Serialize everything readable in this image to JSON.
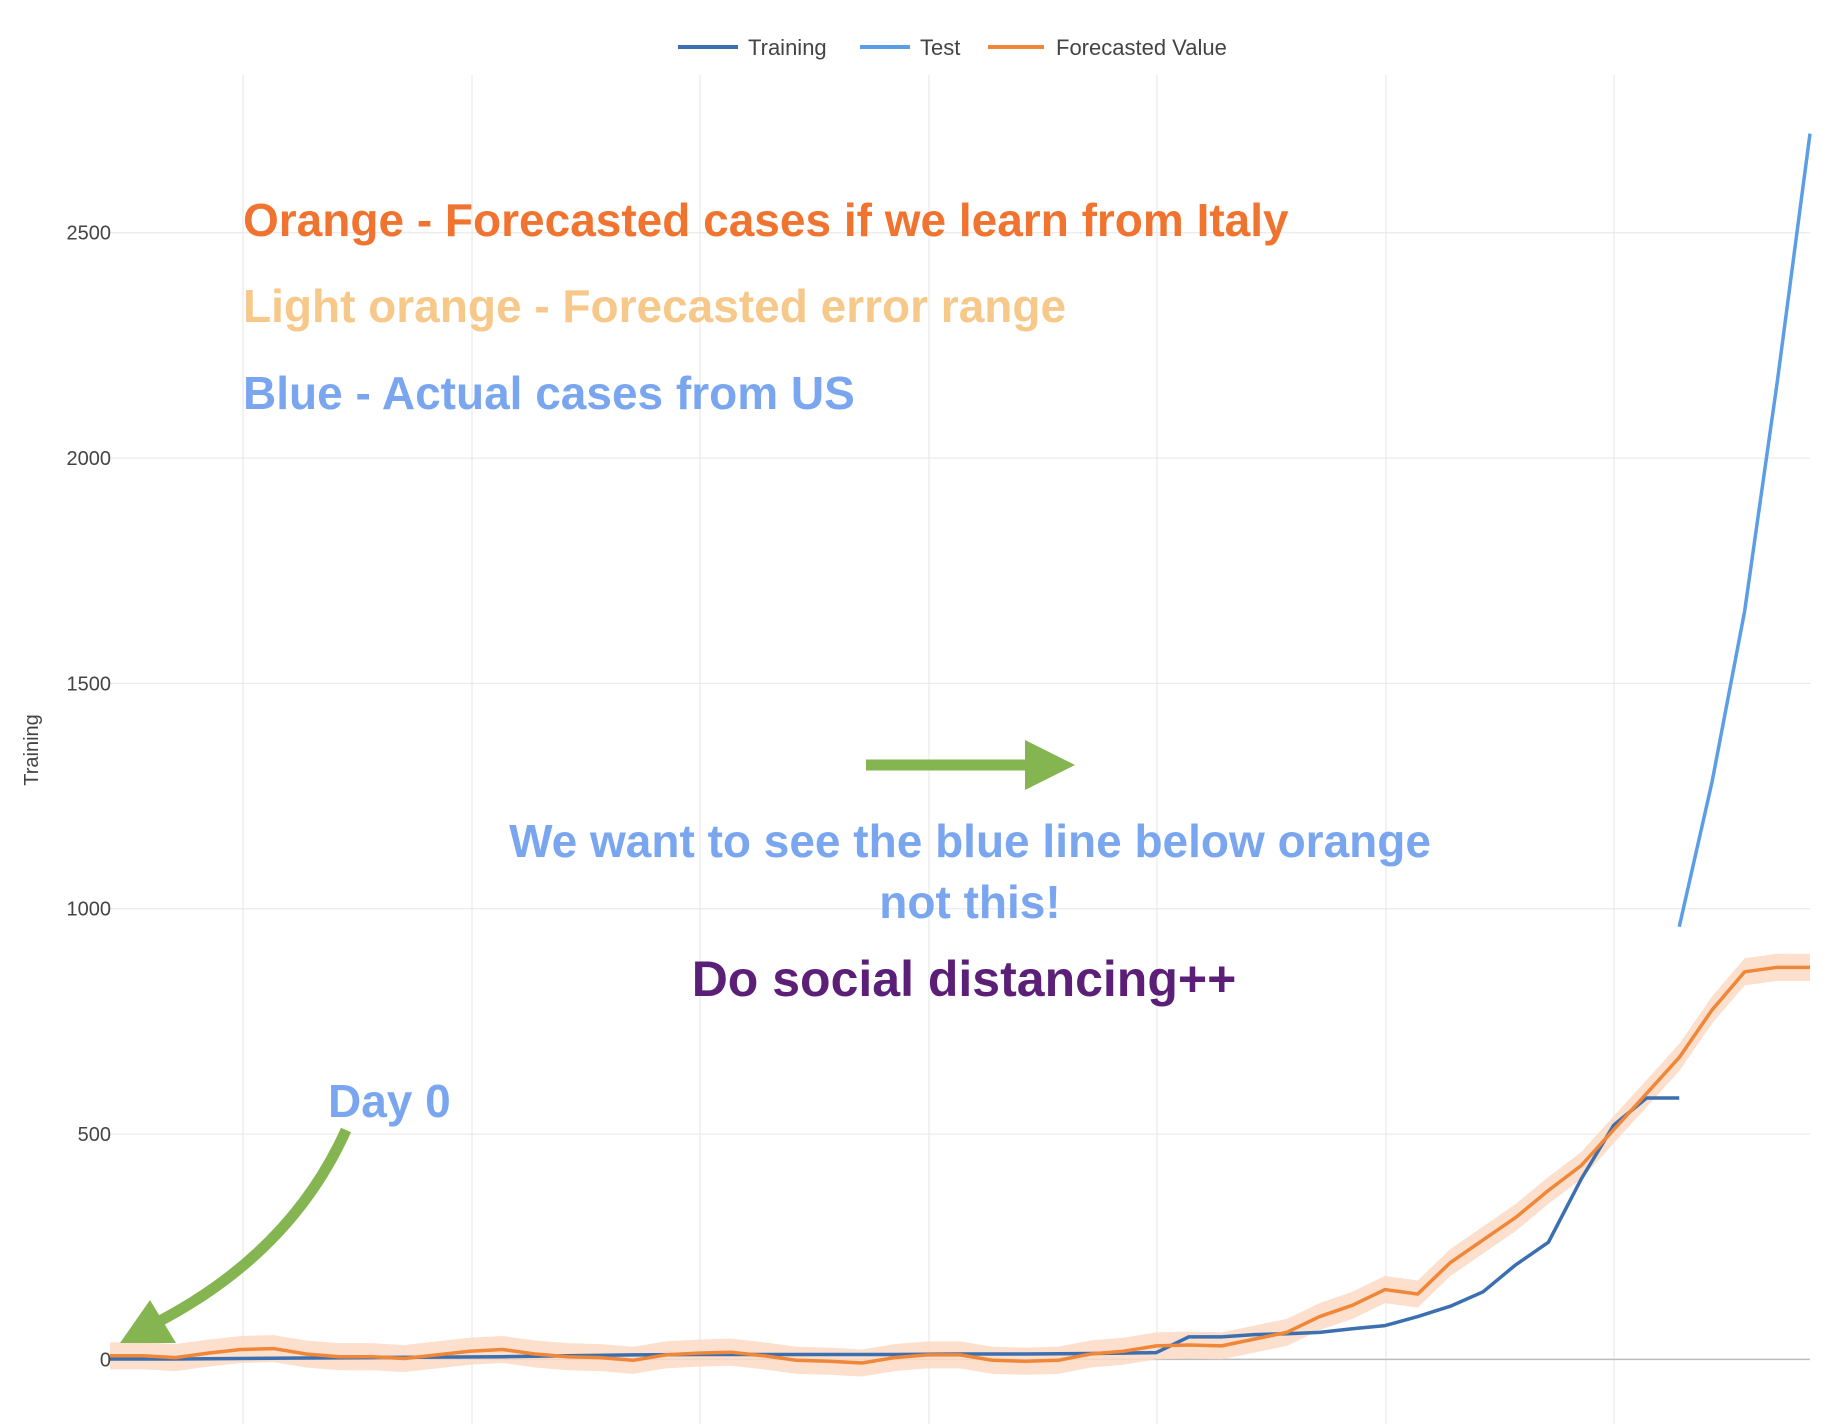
{
  "chart_data": {
    "type": "line",
    "ylabel": "Training",
    "xlabel": "",
    "ylim": [
      -150,
      2850
    ],
    "y_ticks": [
      0,
      500,
      1000,
      1500,
      2000,
      2500
    ],
    "x_range": [
      0,
      52
    ],
    "grid": true,
    "legend_position": "top-center",
    "series": [
      {
        "name": "Training",
        "color": "#3b6fb0",
        "x": [
          0,
          2,
          4,
          6,
          8,
          10,
          12,
          14,
          16,
          18,
          20,
          22,
          24,
          26,
          28,
          30,
          31,
          32,
          33,
          34,
          35,
          36,
          37,
          38,
          39,
          40,
          41,
          42,
          43,
          44,
          45,
          46,
          47,
          48
        ],
        "values": [
          1,
          1,
          2,
          3,
          4,
          5,
          6,
          8,
          10,
          11,
          11,
          11,
          11,
          12,
          12,
          13,
          14,
          15,
          50,
          50,
          55,
          57,
          60,
          68,
          75,
          95,
          118,
          150,
          210,
          260,
          400,
          520,
          580,
          580
        ]
      },
      {
        "name": "Test",
        "color": "#5c9ee6",
        "x": [
          48,
          49,
          50,
          51,
          52
        ],
        "values": [
          960,
          1280,
          1660,
          2170,
          2720
        ]
      },
      {
        "name": "Forecasted Value",
        "color": "#f08637",
        "x": [
          0,
          1,
          2,
          3,
          4,
          5,
          6,
          7,
          8,
          9,
          10,
          11,
          12,
          13,
          14,
          15,
          16,
          17,
          18,
          19,
          20,
          21,
          22,
          23,
          24,
          25,
          26,
          27,
          28,
          29,
          30,
          31,
          32,
          33,
          34,
          35,
          36,
          37,
          38,
          39,
          40,
          41,
          42,
          43,
          44,
          45,
          46,
          47,
          48,
          49,
          50,
          51,
          52
        ],
        "values": [
          8,
          8,
          4,
          14,
          22,
          24,
          12,
          6,
          6,
          2,
          10,
          18,
          22,
          12,
          6,
          4,
          -2,
          10,
          14,
          16,
          8,
          -2,
          -4,
          -8,
          4,
          10,
          10,
          -2,
          -4,
          -2,
          12,
          18,
          30,
          32,
          30,
          45,
          60,
          95,
          120,
          155,
          145,
          215,
          265,
          315,
          375,
          430,
          510,
          590,
          670,
          775,
          860,
          870,
          870
        ],
        "error_band_color": "#fbd9c4",
        "error_margin": 30
      }
    ],
    "annotations": [
      {
        "text": "Orange - Forecasted cases if we learn from Italy",
        "color": "#f0742f"
      },
      {
        "text": "Light orange - Forecasted error range",
        "color": "#f6c98a"
      },
      {
        "text": "Blue - Actual cases from US",
        "color": "#7aa6ef"
      },
      {
        "text": "We want to see the blue line below orange",
        "color": "#7aa6ef"
      },
      {
        "text": "not this!",
        "color": "#7aa6ef"
      },
      {
        "text": "Do social distancing++",
        "color": "#5b1f78"
      },
      {
        "text": "Day 0",
        "color": "#7aa6ef"
      }
    ],
    "arrow_color": "#84b550"
  }
}
